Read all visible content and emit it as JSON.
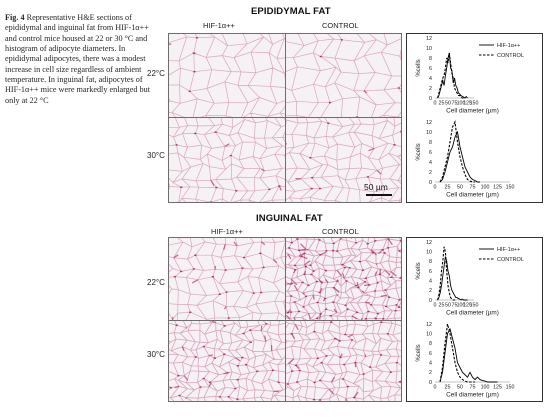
{
  "caption": {
    "label": "Fig. 4",
    "text": "Representative H&E sections of epididymal and inguinal fat from HIF-1α++ and control mice housed at 22 or 30 °C and histogram of adipocyte diameters. In epididymal adipocytes, there was a modest increase in cell size regardless of ambient temperature. In inguinal fat, adipocytes of HIF-1α++ mice were markedly enlarged but only at 22 °C"
  },
  "epididymal": {
    "title": "EPIDIDYMAL FAT",
    "col_hif": "HIF-1α++",
    "col_control": "CONTROL",
    "row_22": "22°C",
    "row_30": "30°C",
    "scale_bar": "50 µm"
  },
  "inguinal": {
    "title": "INGUINAL FAT",
    "col_hif": "HIF-1α++",
    "col_control": "CONTROL",
    "row_22": "22°C",
    "row_30": "30°C"
  },
  "colors": {
    "tissue_bg": "#f6f1f4",
    "membrane": "#d9a6bd",
    "nuclei": "#b5326e",
    "frame": "#333333"
  },
  "chart_data": [
    {
      "id": "epi22",
      "type": "line",
      "xlabel": "Cell diameter (µm)",
      "ylabel": "%cells",
      "xlim": [
        0,
        150
      ],
      "ylim": [
        0,
        12
      ],
      "xticks": [
        0,
        25,
        50,
        75,
        100,
        125,
        150
      ],
      "yticks": [
        0,
        2,
        4,
        6,
        8,
        10,
        12
      ],
      "legend": "top-right",
      "series": [
        {
          "name": "HIF-1α++",
          "dash": "solid",
          "x": [
            10,
            15,
            20,
            25,
            30,
            35,
            40,
            45,
            50,
            55,
            60,
            65,
            70,
            75,
            80,
            85,
            90,
            95,
            100,
            105,
            110,
            115,
            120,
            125
          ],
          "y": [
            0,
            0.5,
            1.5,
            2.5,
            3.5,
            2.5,
            4.5,
            6,
            8,
            9,
            6,
            5.5,
            3,
            4,
            2.5,
            2,
            1,
            0.8,
            0.5,
            0.3,
            0.2,
            0,
            0.3,
            0
          ]
        },
        {
          "name": "CONTROL",
          "dash": "dashed",
          "x": [
            10,
            15,
            20,
            25,
            30,
            35,
            40,
            45,
            50,
            55,
            60,
            65,
            70,
            75,
            80,
            85,
            90,
            95,
            100,
            105,
            110
          ],
          "y": [
            0,
            1,
            2,
            3,
            4,
            4.5,
            6,
            8,
            7,
            9,
            7,
            5,
            4,
            2,
            1.5,
            1,
            0.5,
            0.5,
            0.2,
            0,
            0
          ]
        }
      ]
    },
    {
      "id": "epi30",
      "type": "line",
      "xlabel": "Cell diameter (µm)",
      "ylabel": "%cells",
      "xlim": [
        0,
        150
      ],
      "ylim": [
        0,
        12
      ],
      "xticks": [
        0,
        25,
        50,
        75,
        100,
        125,
        150
      ],
      "yticks": [
        0,
        2,
        4,
        6,
        8,
        10,
        12
      ],
      "series": [
        {
          "name": "HIF-1α++",
          "dash": "solid",
          "x": [
            10,
            15,
            20,
            25,
            30,
            35,
            40,
            45,
            50,
            55,
            60,
            65,
            70,
            75,
            80,
            85,
            90
          ],
          "y": [
            0,
            0.5,
            2,
            4,
            6,
            7,
            9,
            10,
            7,
            5,
            3,
            2,
            1,
            0.5,
            0.3,
            0,
            0
          ]
        },
        {
          "name": "CONTROL",
          "dash": "dashed",
          "x": [
            10,
            15,
            20,
            25,
            30,
            35,
            40,
            45,
            50,
            55,
            60,
            65,
            70,
            75,
            80
          ],
          "y": [
            0,
            1,
            3,
            5,
            8,
            11,
            12,
            8,
            5,
            3,
            1.5,
            0.5,
            0.2,
            0,
            0
          ]
        }
      ]
    },
    {
      "id": "ing22",
      "type": "line",
      "xlabel": "Cell diameter (µm)",
      "ylabel": "%cells",
      "xlim": [
        0,
        150
      ],
      "ylim": [
        0,
        12
      ],
      "xticks": [
        0,
        25,
        50,
        75,
        100,
        125,
        150
      ],
      "yticks": [
        0,
        2,
        4,
        6,
        8,
        10,
        12
      ],
      "legend": "top-right",
      "series": [
        {
          "name": "HIF-1α++",
          "dash": "solid",
          "x": [
            10,
            15,
            20,
            25,
            30,
            35,
            40,
            45,
            50,
            55,
            60,
            65,
            70,
            75,
            80,
            85,
            90,
            95,
            100,
            105,
            110,
            115,
            120,
            125
          ],
          "y": [
            0,
            0.5,
            1.5,
            3,
            5,
            7,
            9,
            8,
            6,
            5,
            3,
            2,
            1.5,
            1,
            0.5,
            0.5,
            0.3,
            0.2,
            0,
            0.2,
            0,
            0,
            0,
            0
          ]
        },
        {
          "name": "CONTROL",
          "dash": "dashed",
          "x": [
            10,
            15,
            20,
            25,
            30,
            35,
            40,
            45,
            50,
            55,
            60,
            65,
            70,
            75,
            80
          ],
          "y": [
            0,
            1,
            3,
            6,
            8,
            11,
            10,
            6,
            3,
            1.5,
            0.5,
            0.2,
            0,
            0,
            0
          ]
        }
      ]
    },
    {
      "id": "ing30",
      "type": "line",
      "xlabel": "Cell diameter (µm)",
      "ylabel": "%cells",
      "xlim": [
        0,
        150
      ],
      "ylim": [
        0,
        12
      ],
      "xticks": [
        0,
        25,
        50,
        75,
        100,
        125,
        150
      ],
      "yticks": [
        0,
        2,
        4,
        6,
        8,
        10,
        12
      ],
      "series": [
        {
          "name": "HIF-1α++",
          "dash": "solid",
          "x": [
            10,
            15,
            20,
            25,
            30,
            35,
            40,
            45,
            50,
            55,
            60,
            65,
            70,
            75,
            80,
            85,
            90,
            95,
            100,
            105,
            110,
            115,
            120,
            125
          ],
          "y": [
            0,
            2,
            6,
            10,
            11,
            9,
            7,
            4,
            3,
            2,
            1.5,
            1,
            2,
            1,
            0.5,
            1,
            0.5,
            0.3,
            0.2,
            0,
            0,
            0,
            0,
            0
          ]
        },
        {
          "name": "CONTROL",
          "dash": "dashed",
          "x": [
            10,
            15,
            20,
            25,
            30,
            35,
            40,
            45,
            50,
            55,
            60,
            65,
            70,
            75,
            80
          ],
          "y": [
            0,
            3,
            8,
            12,
            10,
            7,
            4,
            2,
            1,
            0.5,
            0.2,
            0,
            0,
            0,
            0
          ]
        }
      ]
    }
  ]
}
